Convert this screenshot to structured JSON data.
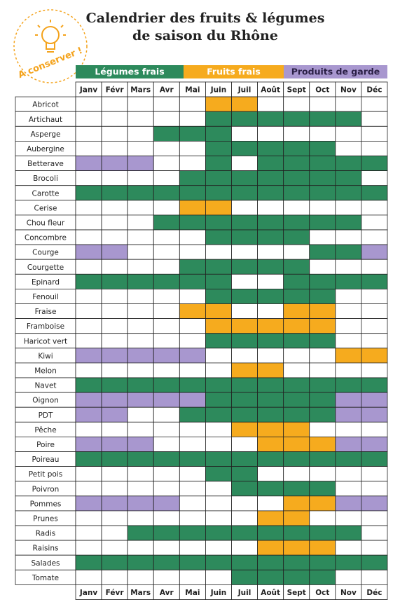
{
  "header": {
    "title": [
      "Calendrier des fruits & légumes",
      "de saison du Rhône"
    ],
    "badge": "A conserver !"
  },
  "legend": [
    {
      "label": "Légumes frais",
      "color": "#2d8a5c",
      "text_color": "#ffffff"
    },
    {
      "label": "Fruits frais",
      "color": "#f6ab1e",
      "text_color": "#ffffff"
    },
    {
      "label": "Produits de garde",
      "color": "#a897cf",
      "text_color": "#2a1f45"
    }
  ],
  "months": [
    "Janv",
    "Févr",
    "Mars",
    "Avr",
    "Mai",
    "Juin",
    "Juil",
    "Août",
    "Sept",
    "Oct",
    "Nov",
    "Déc"
  ],
  "rows": [
    {
      "label": "Abricot",
      "cells": [
        null,
        null,
        null,
        null,
        null,
        1,
        1,
        null,
        null,
        null,
        null,
        null
      ]
    },
    {
      "label": "Artichaut",
      "cells": [
        null,
        null,
        null,
        null,
        null,
        0,
        0,
        0,
        0,
        0,
        0,
        null
      ]
    },
    {
      "label": "Asperge",
      "cells": [
        null,
        null,
        null,
        0,
        0,
        0,
        null,
        null,
        null,
        null,
        null,
        null
      ]
    },
    {
      "label": "Aubergine",
      "cells": [
        null,
        null,
        null,
        null,
        null,
        0,
        0,
        0,
        0,
        0,
        null,
        null
      ]
    },
    {
      "label": "Betterave",
      "cells": [
        2,
        2,
        2,
        null,
        null,
        0,
        null,
        0,
        0,
        0,
        0,
        0
      ]
    },
    {
      "label": "Brocoli",
      "cells": [
        null,
        null,
        null,
        null,
        0,
        0,
        0,
        0,
        0,
        0,
        0,
        null
      ]
    },
    {
      "label": "Carotte",
      "cells": [
        0,
        0,
        0,
        0,
        0,
        0,
        0,
        0,
        0,
        0,
        0,
        0
      ]
    },
    {
      "label": "Cerise",
      "cells": [
        null,
        null,
        null,
        null,
        1,
        1,
        null,
        null,
        null,
        null,
        null,
        null
      ]
    },
    {
      "label": "Chou fleur",
      "cells": [
        null,
        null,
        null,
        0,
        0,
        0,
        0,
        0,
        0,
        0,
        0,
        null
      ]
    },
    {
      "label": "Concombre",
      "cells": [
        null,
        null,
        null,
        null,
        null,
        0,
        0,
        0,
        0,
        null,
        null,
        null
      ]
    },
    {
      "label": "Courge",
      "cells": [
        2,
        2,
        null,
        null,
        null,
        null,
        null,
        null,
        null,
        0,
        0,
        2
      ]
    },
    {
      "label": "Courgette",
      "cells": [
        null,
        null,
        null,
        null,
        0,
        0,
        0,
        0,
        0,
        null,
        null,
        null
      ]
    },
    {
      "label": "Epinard",
      "cells": [
        0,
        0,
        0,
        0,
        0,
        0,
        null,
        null,
        0,
        0,
        0,
        0
      ]
    },
    {
      "label": "Fenouil",
      "cells": [
        null,
        null,
        null,
        null,
        null,
        0,
        0,
        0,
        0,
        0,
        null,
        null
      ]
    },
    {
      "label": "Fraise",
      "cells": [
        null,
        null,
        null,
        null,
        1,
        1,
        null,
        null,
        1,
        1,
        null,
        null
      ]
    },
    {
      "label": "Framboise",
      "cells": [
        null,
        null,
        null,
        null,
        null,
        1,
        1,
        1,
        1,
        1,
        null,
        null
      ]
    },
    {
      "label": "Haricot vert",
      "cells": [
        null,
        null,
        null,
        null,
        null,
        0,
        0,
        0,
        0,
        0,
        null,
        null
      ]
    },
    {
      "label": "Kiwi",
      "cells": [
        2,
        2,
        2,
        2,
        2,
        null,
        null,
        null,
        null,
        null,
        1,
        1
      ]
    },
    {
      "label": "Melon",
      "cells": [
        null,
        null,
        null,
        null,
        null,
        null,
        1,
        1,
        null,
        null,
        null,
        null
      ]
    },
    {
      "label": "Navet",
      "cells": [
        0,
        0,
        0,
        0,
        0,
        0,
        0,
        0,
        0,
        0,
        0,
        0
      ]
    },
    {
      "label": "Oignon",
      "cells": [
        2,
        2,
        2,
        2,
        2,
        0,
        0,
        0,
        0,
        0,
        2,
        2
      ]
    },
    {
      "label": "PDT",
      "cells": [
        2,
        2,
        null,
        null,
        0,
        0,
        0,
        0,
        0,
        0,
        2,
        2
      ]
    },
    {
      "label": "Pêche",
      "cells": [
        null,
        null,
        null,
        null,
        null,
        null,
        1,
        1,
        1,
        null,
        null,
        null
      ]
    },
    {
      "label": "Poire",
      "cells": [
        2,
        2,
        2,
        null,
        null,
        null,
        null,
        1,
        1,
        1,
        2,
        2
      ]
    },
    {
      "label": "Poireau",
      "cells": [
        0,
        0,
        0,
        0,
        0,
        0,
        0,
        0,
        0,
        0,
        0,
        0
      ]
    },
    {
      "label": "Petit pois",
      "cells": [
        null,
        null,
        null,
        null,
        null,
        0,
        0,
        null,
        null,
        null,
        null,
        null
      ]
    },
    {
      "label": "Poivron",
      "cells": [
        null,
        null,
        null,
        null,
        null,
        null,
        0,
        0,
        0,
        0,
        null,
        null
      ]
    },
    {
      "label": "Pommes",
      "cells": [
        2,
        2,
        2,
        2,
        null,
        null,
        null,
        null,
        1,
        1,
        2,
        2
      ]
    },
    {
      "label": "Prunes",
      "cells": [
        null,
        null,
        null,
        null,
        null,
        null,
        null,
        1,
        1,
        null,
        null,
        null
      ]
    },
    {
      "label": "Radis",
      "cells": [
        null,
        null,
        0,
        0,
        0,
        0,
        0,
        0,
        0,
        0,
        0,
        null
      ]
    },
    {
      "label": "Raisins",
      "cells": [
        null,
        null,
        null,
        null,
        null,
        null,
        null,
        1,
        1,
        1,
        null,
        null
      ]
    },
    {
      "label": "Salades",
      "cells": [
        0,
        0,
        0,
        0,
        0,
        0,
        0,
        0,
        0,
        0,
        0,
        0
      ]
    },
    {
      "label": "Tomate",
      "cells": [
        null,
        null,
        null,
        null,
        null,
        null,
        0,
        0,
        0,
        0,
        null,
        null
      ]
    }
  ]
}
